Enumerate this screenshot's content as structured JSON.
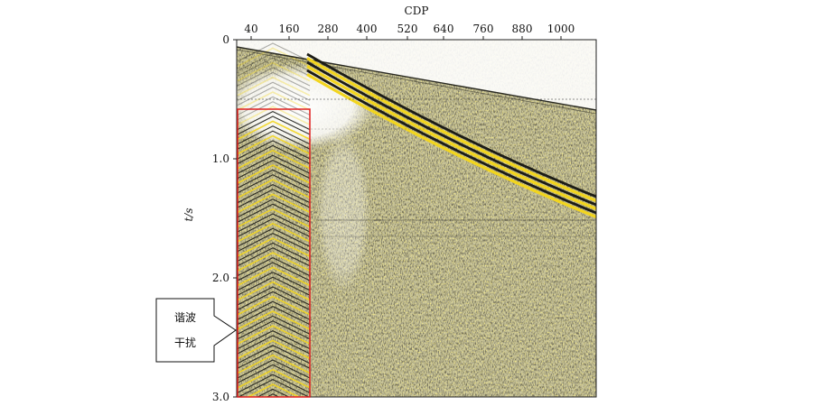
{
  "figure": {
    "x_axis_title": "CDP",
    "y_axis_title": "t/s",
    "x_ticks": [
      "40",
      "160",
      "280",
      "400",
      "520",
      "640",
      "760",
      "880",
      "1000"
    ],
    "y_ticks": [
      "0",
      "1.0",
      "2.0",
      "3.0"
    ],
    "callout_line1": "谐波",
    "callout_line2": "干扰",
    "colors": {
      "background": "#c7c39a",
      "wiggle_dark": "#1c1c16",
      "wiggle_yellow": "#f2d51e",
      "highlight_box": "#e02020",
      "frame": "#222222"
    }
  }
}
